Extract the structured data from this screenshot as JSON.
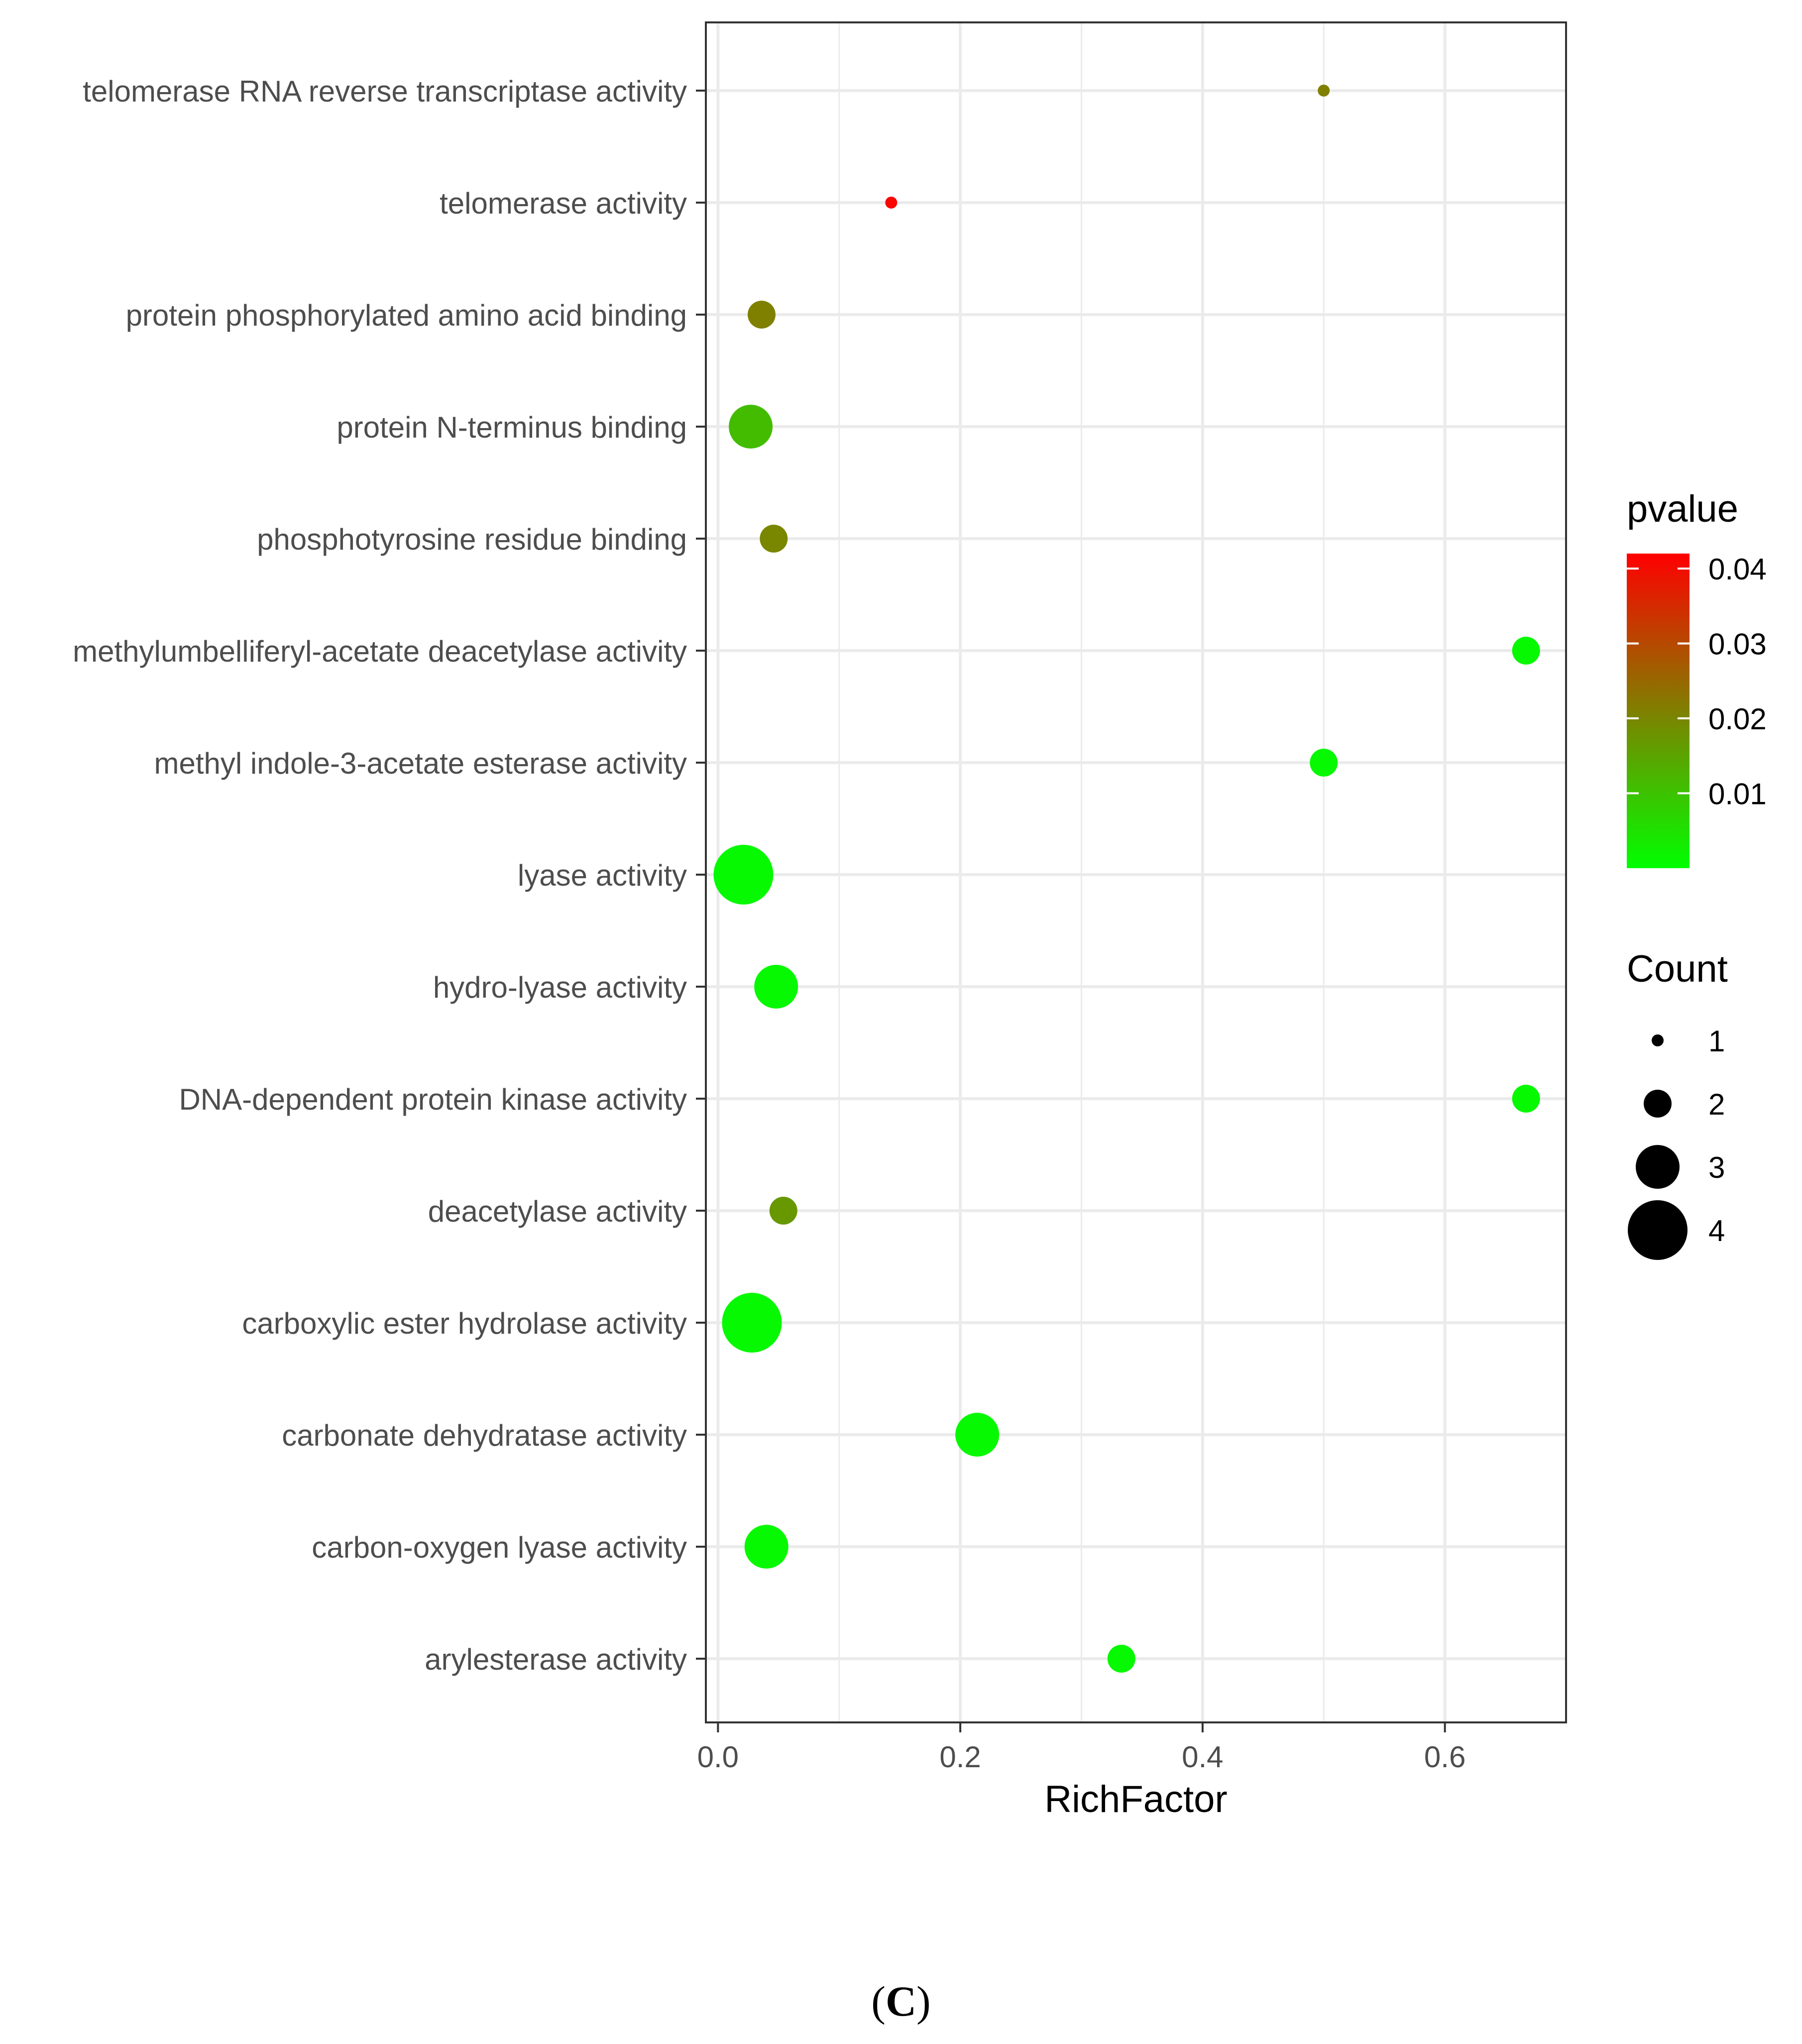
{
  "chart_data": {
    "type": "scatter",
    "subtype": "bubble",
    "xlabel": "RichFactor",
    "xlim": [
      -0.01,
      0.7
    ],
    "x_ticks": [
      0.0,
      0.2,
      0.4,
      0.6
    ],
    "x_tick_labels": [
      "0.0",
      "0.2",
      "0.4",
      "0.6"
    ],
    "grid": true,
    "categories": [
      "telomerase RNA reverse transcriptase activity",
      "telomerase activity",
      "protein phosphorylated amino acid binding",
      "protein N-terminus binding",
      "phosphotyrosine residue binding",
      "methylumbelliferyl-acetate deacetylase activity",
      "methyl indole-3-acetate esterase activity",
      "lyase activity",
      "hydro-lyase activity",
      "DNA-dependent protein kinase activity",
      "deacetylase activity",
      "carboxylic ester hydrolase activity",
      "carbonate dehydratase activity",
      "carbon-oxygen lyase activity",
      "arylesterase activity"
    ],
    "points": [
      {
        "term": "telomerase RNA reverse transcriptase activity",
        "richfactor": 0.5,
        "count": 1,
        "pvalue": 0.021
      },
      {
        "term": "telomerase activity",
        "richfactor": 0.143,
        "count": 1,
        "pvalue": 0.041
      },
      {
        "term": "protein phosphorylated amino acid binding",
        "richfactor": 0.036,
        "count": 2,
        "pvalue": 0.021
      },
      {
        "term": "protein N-terminus binding",
        "richfactor": 0.027,
        "count": 3,
        "pvalue": 0.011
      },
      {
        "term": "phosphotyrosine residue binding",
        "richfactor": 0.046,
        "count": 2,
        "pvalue": 0.02
      },
      {
        "term": "methylumbelliferyl-acetate deacetylase activity",
        "richfactor": 0.667,
        "count": 2,
        "pvalue": 0.001
      },
      {
        "term": "methyl indole-3-acetate esterase activity",
        "richfactor": 0.5,
        "count": 2,
        "pvalue": 0.001
      },
      {
        "term": "lyase activity",
        "richfactor": 0.021,
        "count": 4,
        "pvalue": 0.001
      },
      {
        "term": "hydro-lyase activity",
        "richfactor": 0.048,
        "count": 3,
        "pvalue": 0.001
      },
      {
        "term": "DNA-dependent protein kinase activity",
        "richfactor": 0.667,
        "count": 2,
        "pvalue": 0.001
      },
      {
        "term": "deacetylase activity",
        "richfactor": 0.054,
        "count": 2,
        "pvalue": 0.017
      },
      {
        "term": "carboxylic ester hydrolase activity",
        "richfactor": 0.028,
        "count": 4,
        "pvalue": 0.001
      },
      {
        "term": "carbonate dehydratase activity",
        "richfactor": 0.214,
        "count": 3,
        "pvalue": 0.001
      },
      {
        "term": "carbon-oxygen lyase activity",
        "richfactor": 0.04,
        "count": 3,
        "pvalue": 0.001
      },
      {
        "term": "arylesterase activity",
        "richfactor": 0.333,
        "count": 2,
        "pvalue": 0.001
      }
    ],
    "color_legend": {
      "title": "pvalue",
      "range": [
        0.0,
        0.042
      ],
      "ticks": [
        0.04,
        0.03,
        0.02,
        0.01
      ],
      "tick_labels": [
        "0.04",
        "0.03",
        "0.02",
        "0.01"
      ],
      "low_color": "#00ff00",
      "high_color": "#ff0000"
    },
    "size_legend": {
      "title": "Count",
      "values": [
        1,
        2,
        3,
        4
      ],
      "labels": [
        "1",
        "2",
        "3",
        "4"
      ]
    },
    "colors": {
      "panel_border": "#333333",
      "grid": "#ebebeb",
      "axis_text": "#4d4d4d",
      "title_text": "#000000",
      "tick": "#333333"
    }
  },
  "figure_label": {
    "open": "(",
    "letter": "C",
    "close": ")"
  }
}
